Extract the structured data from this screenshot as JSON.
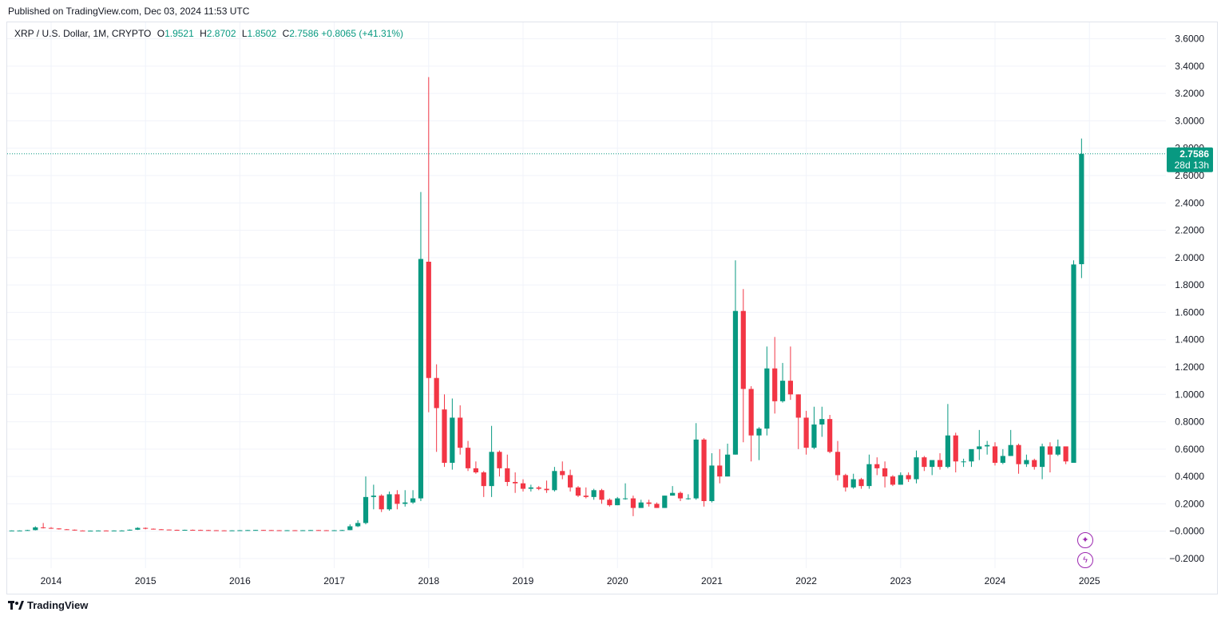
{
  "header": {
    "published": "Published on TradingView.com, Dec 03, 2024 11:53 UTC"
  },
  "legend": {
    "symbol": "XRP / U.S. Dollar, 1M, CRYPTO",
    "o_label": "O",
    "open": "1.9521",
    "h_label": "H",
    "high": "2.8702",
    "l_label": "L",
    "low": "1.8502",
    "c_label": "C",
    "close": "2.7586",
    "change": "+0.8065 (+41.31%)"
  },
  "colors": {
    "up": "#089981",
    "down": "#f23645",
    "grid": "#f0f3fa",
    "text": "#131722",
    "fab": "#9c27b0"
  },
  "price_tag": {
    "price": "2.7586",
    "countdown": "28d 13h"
  },
  "floating_icons": [
    "sparkle-icon",
    "lightning-icon"
  ],
  "brand": {
    "name": "TradingView"
  },
  "chart_data": {
    "type": "candlestick",
    "interval": "1M",
    "ylim": [
      -0.27,
      3.72
    ],
    "y_ticks": [
      {
        "value": 3.6,
        "label": "3.6000"
      },
      {
        "value": 3.4,
        "label": "3.4000"
      },
      {
        "value": 3.2,
        "label": "3.2000"
      },
      {
        "value": 3.0,
        "label": "3.0000"
      },
      {
        "value": 2.8,
        "label": "2.8000"
      },
      {
        "value": 2.6,
        "label": "2.6000"
      },
      {
        "value": 2.4,
        "label": "2.4000"
      },
      {
        "value": 2.2,
        "label": "2.2000"
      },
      {
        "value": 2.0,
        "label": "2.0000"
      },
      {
        "value": 1.8,
        "label": "1.8000"
      },
      {
        "value": 1.6,
        "label": "1.6000"
      },
      {
        "value": 1.4,
        "label": "1.4000"
      },
      {
        "value": 1.2,
        "label": "1.2000"
      },
      {
        "value": 1.0,
        "label": "1.0000"
      },
      {
        "value": 0.8,
        "label": "0.8000"
      },
      {
        "value": 0.6,
        "label": "0.6000"
      },
      {
        "value": 0.4,
        "label": "0.4000"
      },
      {
        "value": 0.2,
        "label": "0.2000"
      },
      {
        "value": 0.0,
        "label": "−0.0000"
      },
      {
        "value": -0.2,
        "label": "−0.2000"
      }
    ],
    "x_ticks": [
      {
        "year": 2014,
        "label": "2014"
      },
      {
        "year": 2015,
        "label": "2015"
      },
      {
        "year": 2016,
        "label": "2016"
      },
      {
        "year": 2017,
        "label": "2017"
      },
      {
        "year": 2018,
        "label": "2018"
      },
      {
        "year": 2019,
        "label": "2019"
      },
      {
        "year": 2020,
        "label": "2020"
      },
      {
        "year": 2021,
        "label": "2021"
      },
      {
        "year": 2022,
        "label": "2022"
      },
      {
        "year": 2023,
        "label": "2023"
      },
      {
        "year": 2024,
        "label": "2024"
      },
      {
        "year": 2025,
        "label": "2025"
      }
    ],
    "last_price": 2.7586,
    "candles": [
      {
        "d": "2013-08",
        "o": 0.005,
        "h": 0.006,
        "l": 0.004,
        "c": 0.005
      },
      {
        "d": "2013-09",
        "o": 0.005,
        "h": 0.006,
        "l": 0.004,
        "c": 0.005
      },
      {
        "d": "2013-10",
        "o": 0.005,
        "h": 0.01,
        "l": 0.004,
        "c": 0.008
      },
      {
        "d": "2013-11",
        "o": 0.008,
        "h": 0.036,
        "l": 0.006,
        "c": 0.028
      },
      {
        "d": "2013-12",
        "o": 0.028,
        "h": 0.06,
        "l": 0.02,
        "c": 0.024
      },
      {
        "d": "2014-01",
        "o": 0.024,
        "h": 0.03,
        "l": 0.018,
        "c": 0.02
      },
      {
        "d": "2014-02",
        "o": 0.02,
        "h": 0.022,
        "l": 0.012,
        "c": 0.014
      },
      {
        "d": "2014-03",
        "o": 0.014,
        "h": 0.016,
        "l": 0.01,
        "c": 0.011
      },
      {
        "d": "2014-04",
        "o": 0.011,
        "h": 0.012,
        "l": 0.004,
        "c": 0.005
      },
      {
        "d": "2014-05",
        "o": 0.005,
        "h": 0.006,
        "l": 0.003,
        "c": 0.004
      },
      {
        "d": "2014-06",
        "o": 0.004,
        "h": 0.005,
        "l": 0.003,
        "c": 0.004
      },
      {
        "d": "2014-07",
        "o": 0.004,
        "h": 0.006,
        "l": 0.003,
        "c": 0.005
      },
      {
        "d": "2014-08",
        "o": 0.005,
        "h": 0.006,
        "l": 0.004,
        "c": 0.004
      },
      {
        "d": "2014-09",
        "o": 0.004,
        "h": 0.006,
        "l": 0.003,
        "c": 0.005
      },
      {
        "d": "2014-10",
        "o": 0.005,
        "h": 0.007,
        "l": 0.004,
        "c": 0.005
      },
      {
        "d": "2014-11",
        "o": 0.005,
        "h": 0.012,
        "l": 0.004,
        "c": 0.011
      },
      {
        "d": "2014-12",
        "o": 0.011,
        "h": 0.029,
        "l": 0.009,
        "c": 0.024
      },
      {
        "d": "2015-01",
        "o": 0.024,
        "h": 0.027,
        "l": 0.014,
        "c": 0.018
      },
      {
        "d": "2015-02",
        "o": 0.018,
        "h": 0.02,
        "l": 0.012,
        "c": 0.014
      },
      {
        "d": "2015-03",
        "o": 0.014,
        "h": 0.016,
        "l": 0.01,
        "c": 0.012
      },
      {
        "d": "2015-04",
        "o": 0.012,
        "h": 0.013,
        "l": 0.008,
        "c": 0.01
      },
      {
        "d": "2015-05",
        "o": 0.01,
        "h": 0.011,
        "l": 0.007,
        "c": 0.009
      },
      {
        "d": "2015-06",
        "o": 0.009,
        "h": 0.011,
        "l": 0.008,
        "c": 0.01
      },
      {
        "d": "2015-07",
        "o": 0.01,
        "h": 0.012,
        "l": 0.008,
        "c": 0.009
      },
      {
        "d": "2015-08",
        "o": 0.009,
        "h": 0.011,
        "l": 0.007,
        "c": 0.008
      },
      {
        "d": "2015-09",
        "o": 0.008,
        "h": 0.01,
        "l": 0.006,
        "c": 0.007
      },
      {
        "d": "2015-10",
        "o": 0.007,
        "h": 0.008,
        "l": 0.005,
        "c": 0.006
      },
      {
        "d": "2015-11",
        "o": 0.006,
        "h": 0.007,
        "l": 0.004,
        "c": 0.005
      },
      {
        "d": "2015-12",
        "o": 0.005,
        "h": 0.007,
        "l": 0.004,
        "c": 0.006
      },
      {
        "d": "2016-01",
        "o": 0.006,
        "h": 0.008,
        "l": 0.005,
        "c": 0.007
      },
      {
        "d": "2016-02",
        "o": 0.007,
        "h": 0.009,
        "l": 0.006,
        "c": 0.008
      },
      {
        "d": "2016-03",
        "o": 0.008,
        "h": 0.01,
        "l": 0.006,
        "c": 0.009
      },
      {
        "d": "2016-04",
        "o": 0.009,
        "h": 0.01,
        "l": 0.007,
        "c": 0.008
      },
      {
        "d": "2016-05",
        "o": 0.008,
        "h": 0.009,
        "l": 0.006,
        "c": 0.007
      },
      {
        "d": "2016-06",
        "o": 0.007,
        "h": 0.008,
        "l": 0.005,
        "c": 0.006
      },
      {
        "d": "2016-07",
        "o": 0.006,
        "h": 0.008,
        "l": 0.005,
        "c": 0.007
      },
      {
        "d": "2016-08",
        "o": 0.007,
        "h": 0.008,
        "l": 0.005,
        "c": 0.006
      },
      {
        "d": "2016-09",
        "o": 0.006,
        "h": 0.008,
        "l": 0.005,
        "c": 0.007
      },
      {
        "d": "2016-10",
        "o": 0.007,
        "h": 0.009,
        "l": 0.006,
        "c": 0.008
      },
      {
        "d": "2016-11",
        "o": 0.008,
        "h": 0.009,
        "l": 0.006,
        "c": 0.007
      },
      {
        "d": "2016-12",
        "o": 0.007,
        "h": 0.008,
        "l": 0.006,
        "c": 0.006
      },
      {
        "d": "2017-01",
        "o": 0.006,
        "h": 0.008,
        "l": 0.005,
        "c": 0.007
      },
      {
        "d": "2017-02",
        "o": 0.007,
        "h": 0.01,
        "l": 0.006,
        "c": 0.008
      },
      {
        "d": "2017-03",
        "o": 0.008,
        "h": 0.05,
        "l": 0.007,
        "c": 0.036
      },
      {
        "d": "2017-04",
        "o": 0.036,
        "h": 0.08,
        "l": 0.03,
        "c": 0.06
      },
      {
        "d": "2017-05",
        "o": 0.06,
        "h": 0.4,
        "l": 0.05,
        "c": 0.25
      },
      {
        "d": "2017-06",
        "o": 0.25,
        "h": 0.34,
        "l": 0.16,
        "c": 0.26
      },
      {
        "d": "2017-07",
        "o": 0.26,
        "h": 0.27,
        "l": 0.14,
        "c": 0.16
      },
      {
        "d": "2017-08",
        "o": 0.16,
        "h": 0.29,
        "l": 0.15,
        "c": 0.27
      },
      {
        "d": "2017-09",
        "o": 0.27,
        "h": 0.3,
        "l": 0.16,
        "c": 0.2
      },
      {
        "d": "2017-10",
        "o": 0.2,
        "h": 0.3,
        "l": 0.18,
        "c": 0.21
      },
      {
        "d": "2017-11",
        "o": 0.21,
        "h": 0.3,
        "l": 0.2,
        "c": 0.24
      },
      {
        "d": "2017-12",
        "o": 0.24,
        "h": 2.48,
        "l": 0.22,
        "c": 1.99
      },
      {
        "d": "2018-01",
        "o": 1.97,
        "h": 3.32,
        "l": 0.87,
        "c": 1.12
      },
      {
        "d": "2018-02",
        "o": 1.12,
        "h": 1.22,
        "l": 0.58,
        "c": 0.9
      },
      {
        "d": "2018-03",
        "o": 0.89,
        "h": 1.0,
        "l": 0.47,
        "c": 0.5
      },
      {
        "d": "2018-04",
        "o": 0.5,
        "h": 0.97,
        "l": 0.45,
        "c": 0.83
      },
      {
        "d": "2018-05",
        "o": 0.83,
        "h": 0.92,
        "l": 0.56,
        "c": 0.61
      },
      {
        "d": "2018-06",
        "o": 0.61,
        "h": 0.66,
        "l": 0.44,
        "c": 0.46
      },
      {
        "d": "2018-07",
        "o": 0.46,
        "h": 0.51,
        "l": 0.42,
        "c": 0.43
      },
      {
        "d": "2018-08",
        "o": 0.43,
        "h": 0.44,
        "l": 0.25,
        "c": 0.33
      },
      {
        "d": "2018-09",
        "o": 0.33,
        "h": 0.77,
        "l": 0.25,
        "c": 0.58
      },
      {
        "d": "2018-10",
        "o": 0.58,
        "h": 0.59,
        "l": 0.4,
        "c": 0.46
      },
      {
        "d": "2018-11",
        "o": 0.46,
        "h": 0.56,
        "l": 0.33,
        "c": 0.36
      },
      {
        "d": "2018-12",
        "o": 0.36,
        "h": 0.43,
        "l": 0.28,
        "c": 0.35
      },
      {
        "d": "2019-01",
        "o": 0.35,
        "h": 0.38,
        "l": 0.29,
        "c": 0.31
      },
      {
        "d": "2019-02",
        "o": 0.31,
        "h": 0.34,
        "l": 0.29,
        "c": 0.32
      },
      {
        "d": "2019-03",
        "o": 0.32,
        "h": 0.33,
        "l": 0.3,
        "c": 0.31
      },
      {
        "d": "2019-04",
        "o": 0.31,
        "h": 0.37,
        "l": 0.28,
        "c": 0.3
      },
      {
        "d": "2019-05",
        "o": 0.3,
        "h": 0.47,
        "l": 0.29,
        "c": 0.44
      },
      {
        "d": "2019-06",
        "o": 0.44,
        "h": 0.51,
        "l": 0.38,
        "c": 0.41
      },
      {
        "d": "2019-07",
        "o": 0.41,
        "h": 0.45,
        "l": 0.29,
        "c": 0.32
      },
      {
        "d": "2019-08",
        "o": 0.32,
        "h": 0.33,
        "l": 0.25,
        "c": 0.26
      },
      {
        "d": "2019-09",
        "o": 0.26,
        "h": 0.32,
        "l": 0.24,
        "c": 0.25
      },
      {
        "d": "2019-10",
        "o": 0.25,
        "h": 0.31,
        "l": 0.23,
        "c": 0.3
      },
      {
        "d": "2019-11",
        "o": 0.3,
        "h": 0.31,
        "l": 0.2,
        "c": 0.23
      },
      {
        "d": "2019-12",
        "o": 0.23,
        "h": 0.24,
        "l": 0.18,
        "c": 0.19
      },
      {
        "d": "2020-01",
        "o": 0.19,
        "h": 0.25,
        "l": 0.19,
        "c": 0.24
      },
      {
        "d": "2020-02",
        "o": 0.24,
        "h": 0.35,
        "l": 0.23,
        "c": 0.24
      },
      {
        "d": "2020-03",
        "o": 0.24,
        "h": 0.26,
        "l": 0.11,
        "c": 0.17
      },
      {
        "d": "2020-04",
        "o": 0.17,
        "h": 0.23,
        "l": 0.17,
        "c": 0.21
      },
      {
        "d": "2020-05",
        "o": 0.21,
        "h": 0.23,
        "l": 0.18,
        "c": 0.2
      },
      {
        "d": "2020-06",
        "o": 0.2,
        "h": 0.21,
        "l": 0.17,
        "c": 0.17
      },
      {
        "d": "2020-07",
        "o": 0.17,
        "h": 0.26,
        "l": 0.17,
        "c": 0.26
      },
      {
        "d": "2020-08",
        "o": 0.26,
        "h": 0.33,
        "l": 0.26,
        "c": 0.28
      },
      {
        "d": "2020-09",
        "o": 0.28,
        "h": 0.29,
        "l": 0.22,
        "c": 0.24
      },
      {
        "d": "2020-10",
        "o": 0.24,
        "h": 0.27,
        "l": 0.23,
        "c": 0.24
      },
      {
        "d": "2020-11",
        "o": 0.24,
        "h": 0.79,
        "l": 0.23,
        "c": 0.67
      },
      {
        "d": "2020-12",
        "o": 0.67,
        "h": 0.68,
        "l": 0.18,
        "c": 0.22
      },
      {
        "d": "2021-01",
        "o": 0.22,
        "h": 0.57,
        "l": 0.21,
        "c": 0.48
      },
      {
        "d": "2021-02",
        "o": 0.48,
        "h": 0.6,
        "l": 0.35,
        "c": 0.4
      },
      {
        "d": "2021-03",
        "o": 0.4,
        "h": 0.64,
        "l": 0.4,
        "c": 0.56
      },
      {
        "d": "2021-04",
        "o": 0.56,
        "h": 1.98,
        "l": 0.56,
        "c": 1.61
      },
      {
        "d": "2021-05",
        "o": 1.61,
        "h": 1.77,
        "l": 0.65,
        "c": 1.04
      },
      {
        "d": "2021-06",
        "o": 1.04,
        "h": 1.06,
        "l": 0.51,
        "c": 0.7
      },
      {
        "d": "2021-07",
        "o": 0.7,
        "h": 0.76,
        "l": 0.52,
        "c": 0.75
      },
      {
        "d": "2021-08",
        "o": 0.75,
        "h": 1.35,
        "l": 0.7,
        "c": 1.19
      },
      {
        "d": "2021-09",
        "o": 1.19,
        "h": 1.42,
        "l": 0.86,
        "c": 0.95
      },
      {
        "d": "2021-10",
        "o": 0.95,
        "h": 1.23,
        "l": 0.94,
        "c": 1.1
      },
      {
        "d": "2021-11",
        "o": 1.1,
        "h": 1.35,
        "l": 0.96,
        "c": 1.0
      },
      {
        "d": "2021-12",
        "o": 1.0,
        "h": 1.0,
        "l": 0.6,
        "c": 0.83
      },
      {
        "d": "2022-01",
        "o": 0.83,
        "h": 0.88,
        "l": 0.56,
        "c": 0.61
      },
      {
        "d": "2022-02",
        "o": 0.61,
        "h": 0.91,
        "l": 0.6,
        "c": 0.78
      },
      {
        "d": "2022-03",
        "o": 0.78,
        "h": 0.91,
        "l": 0.69,
        "c": 0.82
      },
      {
        "d": "2022-04",
        "o": 0.82,
        "h": 0.85,
        "l": 0.57,
        "c": 0.58
      },
      {
        "d": "2022-05",
        "o": 0.58,
        "h": 0.66,
        "l": 0.37,
        "c": 0.41
      },
      {
        "d": "2022-06",
        "o": 0.41,
        "h": 0.42,
        "l": 0.29,
        "c": 0.32
      },
      {
        "d": "2022-07",
        "o": 0.32,
        "h": 0.42,
        "l": 0.31,
        "c": 0.38
      },
      {
        "d": "2022-08",
        "o": 0.38,
        "h": 0.39,
        "l": 0.31,
        "c": 0.33
      },
      {
        "d": "2022-09",
        "o": 0.33,
        "h": 0.56,
        "l": 0.31,
        "c": 0.49
      },
      {
        "d": "2022-10",
        "o": 0.49,
        "h": 0.54,
        "l": 0.41,
        "c": 0.46
      },
      {
        "d": "2022-11",
        "o": 0.46,
        "h": 0.51,
        "l": 0.32,
        "c": 0.4
      },
      {
        "d": "2022-12",
        "o": 0.4,
        "h": 0.41,
        "l": 0.33,
        "c": 0.34
      },
      {
        "d": "2023-01",
        "o": 0.34,
        "h": 0.43,
        "l": 0.34,
        "c": 0.41
      },
      {
        "d": "2023-02",
        "o": 0.41,
        "h": 0.43,
        "l": 0.36,
        "c": 0.38
      },
      {
        "d": "2023-03",
        "o": 0.38,
        "h": 0.59,
        "l": 0.35,
        "c": 0.54
      },
      {
        "d": "2023-04",
        "o": 0.54,
        "h": 0.55,
        "l": 0.44,
        "c": 0.47
      },
      {
        "d": "2023-05",
        "o": 0.47,
        "h": 0.5,
        "l": 0.41,
        "c": 0.52
      },
      {
        "d": "2023-06",
        "o": 0.52,
        "h": 0.57,
        "l": 0.45,
        "c": 0.47
      },
      {
        "d": "2023-07",
        "o": 0.47,
        "h": 0.93,
        "l": 0.46,
        "c": 0.7
      },
      {
        "d": "2023-08",
        "o": 0.7,
        "h": 0.72,
        "l": 0.43,
        "c": 0.51
      },
      {
        "d": "2023-09",
        "o": 0.51,
        "h": 0.53,
        "l": 0.47,
        "c": 0.51
      },
      {
        "d": "2023-10",
        "o": 0.51,
        "h": 0.58,
        "l": 0.47,
        "c": 0.6
      },
      {
        "d": "2023-11",
        "o": 0.6,
        "h": 0.74,
        "l": 0.52,
        "c": 0.62
      },
      {
        "d": "2023-12",
        "o": 0.62,
        "h": 0.66,
        "l": 0.56,
        "c": 0.63
      },
      {
        "d": "2024-01",
        "o": 0.62,
        "h": 0.65,
        "l": 0.48,
        "c": 0.5
      },
      {
        "d": "2024-02",
        "o": 0.5,
        "h": 0.6,
        "l": 0.49,
        "c": 0.55
      },
      {
        "d": "2024-03",
        "o": 0.55,
        "h": 0.74,
        "l": 0.55,
        "c": 0.63
      },
      {
        "d": "2024-04",
        "o": 0.63,
        "h": 0.64,
        "l": 0.42,
        "c": 0.49
      },
      {
        "d": "2024-05",
        "o": 0.49,
        "h": 0.56,
        "l": 0.47,
        "c": 0.52
      },
      {
        "d": "2024-06",
        "o": 0.52,
        "h": 0.53,
        "l": 0.45,
        "c": 0.47
      },
      {
        "d": "2024-07",
        "o": 0.47,
        "h": 0.64,
        "l": 0.38,
        "c": 0.62
      },
      {
        "d": "2024-08",
        "o": 0.62,
        "h": 0.65,
        "l": 0.43,
        "c": 0.56
      },
      {
        "d": "2024-09",
        "o": 0.56,
        "h": 0.67,
        "l": 0.55,
        "c": 0.62
      },
      {
        "d": "2024-10",
        "o": 0.62,
        "h": 0.6,
        "l": 0.49,
        "c": 0.51
      },
      {
        "d": "2024-11",
        "o": 0.5,
        "h": 1.98,
        "l": 0.5,
        "c": 1.95
      },
      {
        "d": "2024-12",
        "o": 1.9521,
        "h": 2.8702,
        "l": 1.8502,
        "c": 2.7586
      }
    ]
  }
}
